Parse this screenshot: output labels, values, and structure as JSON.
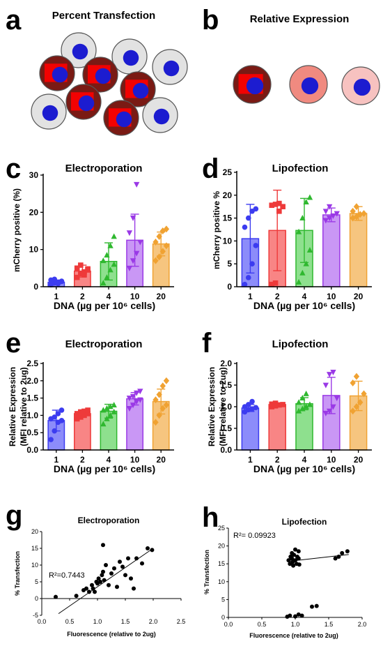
{
  "panel_letters": [
    "a",
    "b",
    "c",
    "d",
    "e",
    "f",
    "g",
    "h"
  ],
  "cell_titles": {
    "a": "Percent Transfection",
    "b": "Relative Expression"
  },
  "colors": {
    "cell_gray": "#e2e2e2",
    "cell_red": "#ff0000",
    "cell_dark": "#7a1a14",
    "nucleus": "#1c1cd0",
    "expr_mid": "#f08a80",
    "expr_light": "#f7c2c0",
    "series": [
      "#3c3cf0",
      "#ee3a3a",
      "#2fb82f",
      "#9a39e6",
      "#f0a232"
    ],
    "bars": [
      "#8c8cfa",
      "#f88585",
      "#8ee08e",
      "#c997f5",
      "#f6c57f"
    ]
  },
  "chart_data": [
    {
      "panel": "c",
      "type": "bar",
      "title": "Electroporation",
      "ylabel": "mCherry positive (%)",
      "xlabel": "DNA (µg per 10⁶ cells)",
      "categories": [
        "1",
        "2",
        "4",
        "10",
        "20"
      ],
      "ylim": [
        0,
        30
      ],
      "yticks": [
        "0",
        "10",
        "20",
        "30"
      ],
      "values": [
        1.2,
        4.2,
        6.8,
        12.5,
        11.5
      ],
      "sd": [
        0.6,
        1.6,
        5.0,
        7.0,
        3.2
      ],
      "points": [
        [
          0.5,
          1.0,
          1.2,
          1.4,
          1.8,
          2.0,
          0.8,
          1.5
        ],
        [
          2.5,
          3.5,
          4.0,
          4.5,
          5.0,
          5.8,
          3.2,
          4.8
        ],
        [
          1.0,
          2.5,
          4.5,
          6.0,
          7.0,
          8.5,
          11.0,
          13.5
        ],
        [
          5.0,
          7.0,
          9.0,
          12.0,
          14.5,
          18.5,
          27.5
        ],
        [
          7.0,
          8.0,
          9.5,
          11.0,
          12.0,
          13.5,
          15.0,
          15.5
        ]
      ],
      "markers": [
        "circle",
        "square",
        "triangle",
        "triangle-down",
        "diamond"
      ]
    },
    {
      "panel": "d",
      "type": "bar",
      "title": "Lipofection",
      "ylabel": "mCherry positive %",
      "xlabel": "DNA (µg per 10⁶ cells)",
      "categories": [
        "1",
        "2",
        "4",
        "10",
        "20"
      ],
      "ylim": [
        0,
        25
      ],
      "yticks": [
        "0",
        "5",
        "10",
        "15",
        "20",
        "25"
      ],
      "values": [
        10.5,
        12.3,
        12.3,
        15.7,
        16.0
      ],
      "sd": [
        7.5,
        8.8,
        7.0,
        1.5,
        1.5
      ],
      "points": [
        [
          0.5,
          2.0,
          5.0,
          9.0,
          13.0,
          15.0,
          16.5,
          17.0
        ],
        [
          0.5,
          0.8,
          16.5,
          17.5,
          17.8,
          18.0,
          18.2
        ],
        [
          1.0,
          3.0,
          5.0,
          8.0,
          12.0,
          15.0,
          18.5,
          19.5
        ],
        [
          14.5,
          15.0,
          15.5,
          16.0,
          16.5,
          17.5
        ],
        [
          15.0,
          15.3,
          15.8,
          16.0,
          16.5,
          17.5
        ]
      ],
      "markers": [
        "circle",
        "square",
        "triangle",
        "triangle-down",
        "diamond"
      ]
    },
    {
      "panel": "e",
      "type": "bar",
      "title": "Electroporation",
      "ylabel": "Relative Expression",
      "ylabel2": "(MFI relative to 2ug)",
      "xlabel": "DNA (µg per 10⁶ cells)",
      "categories": [
        "1",
        "2",
        "4",
        "10",
        "20"
      ],
      "ylim": [
        0,
        2.5
      ],
      "yticks": [
        "0.0",
        "0.5",
        "1.0",
        "1.5",
        "2.0",
        "2.5"
      ],
      "values": [
        0.85,
        1.05,
        1.12,
        1.48,
        1.4
      ],
      "sd": [
        0.3,
        0.1,
        0.2,
        0.18,
        0.36
      ],
      "points": [
        [
          0.3,
          0.55,
          0.8,
          0.85,
          0.9,
          0.95,
          1.05,
          1.15
        ],
        [
          0.9,
          0.95,
          1.0,
          1.05,
          1.05,
          1.1,
          1.12,
          1.15
        ],
        [
          0.75,
          0.9,
          1.0,
          1.1,
          1.15,
          1.2,
          1.25,
          1.3
        ],
        [
          1.2,
          1.3,
          1.4,
          1.45,
          1.5,
          1.55,
          1.65,
          1.7
        ],
        [
          0.8,
          1.0,
          1.2,
          1.3,
          1.45,
          1.6,
          1.85,
          2.0
        ]
      ],
      "markers": [
        "circle",
        "square",
        "triangle",
        "triangle-down",
        "diamond"
      ]
    },
    {
      "panel": "f",
      "type": "bar",
      "title": "Lipofection",
      "ylabel": "Relative Expression",
      "ylabel2": "(MFI relative to 2ug)",
      "xlabel": "DNA (µg per 10⁶ cells)",
      "categories": [
        "1",
        "2",
        "4",
        "10",
        "20"
      ],
      "ylim": [
        0,
        2.0
      ],
      "yticks": [
        "0.0",
        "0.5",
        "1.0",
        "1.5",
        "2.0"
      ],
      "values": [
        0.97,
        1.05,
        1.07,
        1.26,
        1.25
      ],
      "sd": [
        0.08,
        0.04,
        0.14,
        0.42,
        0.34
      ],
      "points": [
        [
          0.88,
          0.93,
          0.95,
          0.98,
          1.0,
          1.05,
          1.12
        ],
        [
          1.0,
          1.02,
          1.04,
          1.05,
          1.06,
          1.08
        ],
        [
          0.9,
          0.95,
          1.0,
          1.05,
          1.1,
          1.2,
          1.3
        ],
        [
          0.85,
          0.9,
          1.0,
          1.2,
          1.5,
          1.75,
          1.8
        ],
        [
          0.9,
          1.0,
          1.1,
          1.3,
          1.55,
          1.7
        ]
      ],
      "markers": [
        "circle",
        "square",
        "triangle",
        "triangle-down",
        "diamond"
      ]
    },
    {
      "panel": "g",
      "type": "scatter",
      "title": "Electroporation",
      "xlabel": "Fluorescence (relative to 2ug)",
      "ylabel": "% Transfection",
      "xlim": [
        0,
        2.5
      ],
      "ylim": [
        -5,
        20
      ],
      "xticks": [
        "0.0",
        "0.5",
        "1.0",
        "1.5",
        "2.0",
        "2.5"
      ],
      "yticks": [
        "-5",
        "0",
        "5",
        "10",
        "15",
        "20"
      ],
      "r2_label": "R²=0.7443",
      "fit": [
        [
          0.3,
          -4.5
        ],
        [
          2.0,
          15.0
        ]
      ],
      "points": [
        [
          0.25,
          0.5
        ],
        [
          0.62,
          0.8
        ],
        [
          0.75,
          2.5
        ],
        [
          0.8,
          3.0
        ],
        [
          0.85,
          2.0
        ],
        [
          0.9,
          4.0
        ],
        [
          0.92,
          3.0
        ],
        [
          0.95,
          2.0
        ],
        [
          0.98,
          5.0
        ],
        [
          1.0,
          4.5
        ],
        [
          1.02,
          6.0
        ],
        [
          1.05,
          5.0
        ],
        [
          1.08,
          7.0
        ],
        [
          1.1,
          8.0
        ],
        [
          1.1,
          16.0
        ],
        [
          1.12,
          5.5
        ],
        [
          1.15,
          10.0
        ],
        [
          1.2,
          4.0
        ],
        [
          1.25,
          7.5
        ],
        [
          1.3,
          9.0
        ],
        [
          1.35,
          3.5
        ],
        [
          1.4,
          11.0
        ],
        [
          1.45,
          9.5
        ],
        [
          1.5,
          7.0
        ],
        [
          1.55,
          12.0
        ],
        [
          1.6,
          6.0
        ],
        [
          1.65,
          3.0
        ],
        [
          1.7,
          12.0
        ],
        [
          1.8,
          10.5
        ],
        [
          1.9,
          15.0
        ],
        [
          1.98,
          14.5
        ]
      ]
    },
    {
      "panel": "h",
      "type": "scatter",
      "title": "Lipofection",
      "xlabel": "Fluorescence (relative to 2ug)",
      "ylabel": "% Transfection",
      "xlim": [
        0,
        2.0
      ],
      "ylim": [
        0,
        25
      ],
      "xticks": [
        "0.0",
        "0.5",
        "1.0",
        "1.5",
        "2.0"
      ],
      "yticks": [
        "0",
        "5",
        "10",
        "15",
        "20",
        "25"
      ],
      "r2_label": "R²= 0.09923",
      "fit": [
        [
          0.9,
          15.7
        ],
        [
          1.8,
          17.6
        ]
      ],
      "points": [
        [
          0.9,
          16.0
        ],
        [
          0.92,
          15.0
        ],
        [
          0.93,
          17.0
        ],
        [
          0.95,
          18.0
        ],
        [
          0.95,
          16.5
        ],
        [
          0.96,
          15.5
        ],
        [
          0.97,
          14.5
        ],
        [
          0.98,
          17.5
        ],
        [
          1.0,
          19.0
        ],
        [
          1.0,
          16.0
        ],
        [
          1.02,
          15.0
        ],
        [
          1.03,
          17.0
        ],
        [
          1.05,
          18.5
        ],
        [
          1.05,
          16.5
        ],
        [
          1.06,
          14.8
        ],
        [
          0.88,
          0.2
        ],
        [
          0.92,
          0.5
        ],
        [
          1.0,
          0.3
        ],
        [
          1.05,
          0.8
        ],
        [
          1.1,
          0.5
        ],
        [
          1.25,
          3.0
        ],
        [
          1.32,
          3.2
        ],
        [
          1.6,
          16.5
        ],
        [
          1.65,
          17.0
        ],
        [
          1.7,
          18.0
        ],
        [
          1.78,
          18.5
        ]
      ]
    }
  ]
}
